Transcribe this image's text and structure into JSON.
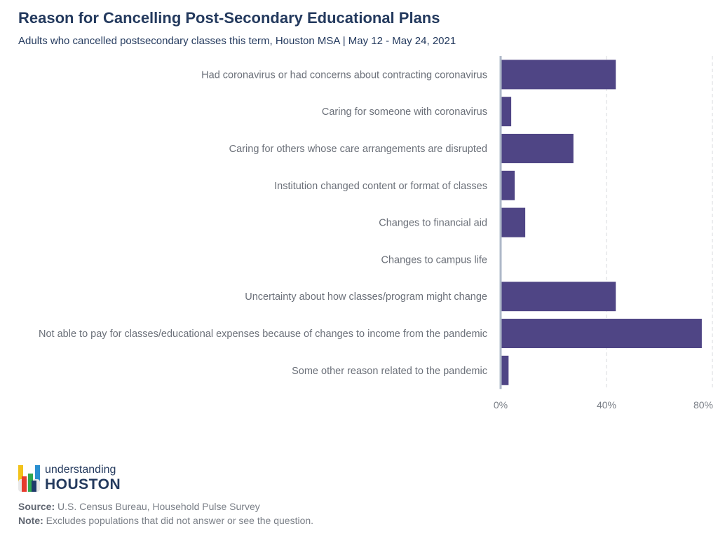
{
  "header": {
    "title": "Reason for Cancelling Post-Secondary Educational Plans",
    "subtitle": "Adults who cancelled postsecondary classes this term, Houston MSA | May 12 - May 24, 2021"
  },
  "chart_data": {
    "type": "bar",
    "orientation": "horizontal",
    "categories": [
      "Had coronavirus or had concerns about contracting coronavirus",
      "Caring for someone with coronavirus",
      "Caring for others whose care arrangements are disrupted",
      "Institution changed content or format of classes",
      "Changes to financial aid",
      "Changes to campus life",
      "Uncertainty about how classes/program might change",
      "Not able to pay for classes/educational expenses because of changes to income from the pandemic",
      "Some other reason related to the pandemic"
    ],
    "values": [
      43.5,
      4.0,
      27.5,
      5.3,
      9.3,
      0,
      43.5,
      76.0,
      3.0
    ],
    "xlim": [
      0,
      80
    ],
    "xticks": [
      0,
      40,
      80
    ],
    "xtick_labels": [
      "0%",
      "40%",
      "80%"
    ],
    "bar_color": "#4f4585",
    "grid": true
  },
  "logo": {
    "line1": "understanding",
    "line2": "HOUSTON"
  },
  "footer": {
    "source_label": "Source:",
    "source_text": "U.S. Census Bureau, Household Pulse Survey",
    "note_label": "Note:",
    "note_text": "Excludes populations that did not answer or see the question."
  }
}
